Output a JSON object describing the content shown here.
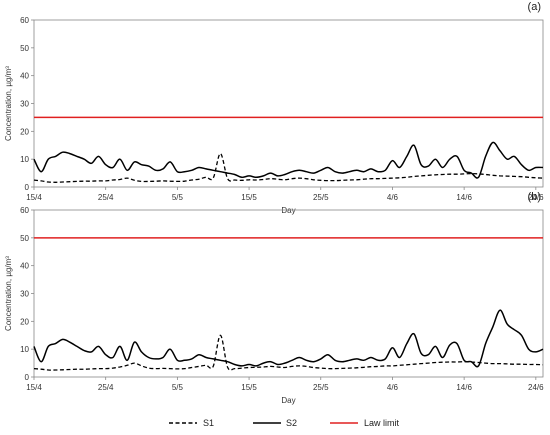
{
  "legend": [
    {
      "key": "S1",
      "label": "S1",
      "style": "dashed",
      "color": "#000000"
    },
    {
      "key": "S2",
      "label": "S2",
      "style": "solid",
      "color": "#000000"
    },
    {
      "key": "law",
      "label": "Law limit",
      "style": "solid",
      "color": "#e02020"
    }
  ],
  "chart_data": [
    {
      "type": "line",
      "panel_label": "(a)",
      "xlabel": "Day",
      "ylabel": "Concentration, µg/m³",
      "ylim": [
        0,
        60
      ],
      "yticks": [
        0,
        10,
        20,
        30,
        40,
        50,
        60
      ],
      "xlim": [
        0,
        71
      ],
      "xticks": [
        {
          "x": 0,
          "label": "15/4"
        },
        {
          "x": 10,
          "label": "25/4"
        },
        {
          "x": 20,
          "label": "5/5"
        },
        {
          "x": 30,
          "label": "15/5"
        },
        {
          "x": 40,
          "label": "25/5"
        },
        {
          "x": 50,
          "label": "4/6"
        },
        {
          "x": 60,
          "label": "14/6"
        },
        {
          "x": 70,
          "label": "24/6"
        }
      ],
      "law_limit": 25,
      "series": [
        {
          "name": "S1",
          "x": [
            0,
            1,
            2,
            3,
            4,
            5,
            6,
            7,
            8,
            9,
            10,
            11,
            12,
            13,
            14,
            15,
            16,
            17,
            18,
            19,
            20,
            21,
            22,
            23,
            24,
            25,
            26,
            27,
            28,
            29,
            30,
            31,
            32,
            33,
            34,
            35,
            36,
            37,
            38,
            39,
            40,
            41,
            42,
            43,
            44,
            45,
            46,
            47,
            48,
            49,
            50,
            51,
            52,
            53,
            54,
            55,
            56,
            57,
            58,
            59,
            60,
            61,
            62,
            63,
            64,
            65,
            66,
            67,
            68,
            69,
            70,
            71
          ],
          "y": [
            2.5,
            2.2,
            1.8,
            1.7,
            1.8,
            1.9,
            2,
            2.1,
            2.1,
            2.2,
            2.2,
            2.5,
            2.7,
            3.2,
            2.4,
            2,
            2,
            2.1,
            2.2,
            2.1,
            2,
            2.1,
            2.5,
            2.8,
            3.5,
            3.2,
            12,
            3,
            2.5,
            2.4,
            2.6,
            2.5,
            2.7,
            3,
            2.8,
            2.6,
            3,
            3.2,
            3,
            2.6,
            2.4,
            2.3,
            2.3,
            2.4,
            2.5,
            2.6,
            2.8,
            3,
            3,
            3.1,
            3.2,
            3.3,
            3.5,
            3.8,
            4,
            4.2,
            4.4,
            4.5,
            4.6,
            4.6,
            4.7,
            4.8,
            4.7,
            4.5,
            4.2,
            4,
            3.9,
            3.8,
            3.7,
            3.5,
            3.3,
            3.2
          ]
        },
        {
          "name": "S2",
          "x": [
            0,
            1,
            2,
            3,
            4,
            5,
            6,
            7,
            8,
            9,
            10,
            11,
            12,
            13,
            14,
            15,
            16,
            17,
            18,
            19,
            20,
            21,
            22,
            23,
            24,
            25,
            26,
            27,
            28,
            29,
            30,
            31,
            32,
            33,
            34,
            35,
            36,
            37,
            38,
            39,
            40,
            41,
            42,
            43,
            44,
            45,
            46,
            47,
            48,
            49,
            50,
            51,
            52,
            53,
            54,
            55,
            56,
            57,
            58,
            59,
            60,
            61,
            62,
            63,
            64,
            65,
            66,
            67,
            68,
            69,
            70,
            71
          ],
          "y": [
            10,
            5.5,
            10,
            11,
            12.5,
            12,
            11,
            10,
            8.5,
            11,
            8,
            7,
            10,
            6,
            9,
            8,
            7.5,
            6,
            6.5,
            9,
            5.5,
            5.5,
            6,
            7,
            6.5,
            6,
            5.5,
            5,
            4.5,
            3.5,
            4,
            3.5,
            4,
            5,
            4,
            4.5,
            5.5,
            6,
            5.5,
            5,
            6,
            7,
            5.5,
            5,
            5.5,
            6,
            5.5,
            6.5,
            5.5,
            6,
            9.5,
            7,
            11,
            15,
            8,
            7.5,
            10,
            7,
            10,
            11,
            6,
            5,
            3.5,
            11,
            16,
            13,
            10,
            11,
            8,
            6,
            7,
            7
          ]
        }
      ]
    },
    {
      "type": "line",
      "panel_label": "(b)",
      "xlabel": "Day",
      "ylabel": "Concentration, µg/m³",
      "ylim": [
        0,
        60
      ],
      "yticks": [
        0,
        10,
        20,
        30,
        40,
        50,
        60
      ],
      "xlim": [
        0,
        71
      ],
      "xticks": [
        {
          "x": 0,
          "label": "15/4"
        },
        {
          "x": 10,
          "label": "25/4"
        },
        {
          "x": 20,
          "label": "5/5"
        },
        {
          "x": 30,
          "label": "15/5"
        },
        {
          "x": 40,
          "label": "25/5"
        },
        {
          "x": 50,
          "label": "4/6"
        },
        {
          "x": 60,
          "label": "14/6"
        },
        {
          "x": 70,
          "label": "24/6"
        }
      ],
      "law_limit": 50,
      "series": [
        {
          "name": "S1",
          "x": [
            0,
            1,
            2,
            3,
            4,
            5,
            6,
            7,
            8,
            9,
            10,
            11,
            12,
            13,
            14,
            15,
            16,
            17,
            18,
            19,
            20,
            21,
            22,
            23,
            24,
            25,
            26,
            27,
            28,
            29,
            30,
            31,
            32,
            33,
            34,
            35,
            36,
            37,
            38,
            39,
            40,
            41,
            42,
            43,
            44,
            45,
            46,
            47,
            48,
            49,
            50,
            51,
            52,
            53,
            54,
            55,
            56,
            57,
            58,
            59,
            60,
            61,
            62,
            63,
            64,
            65,
            66,
            67,
            68,
            69,
            70,
            71
          ],
          "y": [
            3,
            2.8,
            2.5,
            2.5,
            2.6,
            2.7,
            2.8,
            2.8,
            2.9,
            3,
            3,
            3.2,
            3.6,
            4.2,
            5,
            4,
            3.2,
            3,
            3.1,
            3,
            2.9,
            3,
            3.4,
            3.8,
            4.2,
            3.8,
            15,
            3.5,
            3,
            3.2,
            3.4,
            3.5,
            3.6,
            3.8,
            3.6,
            3.4,
            3.8,
            4,
            3.8,
            3.4,
            3.2,
            3,
            3,
            3.1,
            3.2,
            3.3,
            3.5,
            3.7,
            3.8,
            4,
            4,
            4.2,
            4.4,
            4.6,
            4.8,
            5,
            5.2,
            5.3,
            5.4,
            5.4,
            5.5,
            5.4,
            5.2,
            5,
            4.8,
            4.8,
            4.7,
            4.6,
            4.6,
            4.5,
            4.5,
            4.4
          ]
        },
        {
          "name": "S2",
          "x": [
            0,
            1,
            2,
            3,
            4,
            5,
            6,
            7,
            8,
            9,
            10,
            11,
            12,
            13,
            14,
            15,
            16,
            17,
            18,
            19,
            20,
            21,
            22,
            23,
            24,
            25,
            26,
            27,
            28,
            29,
            30,
            31,
            32,
            33,
            34,
            35,
            36,
            37,
            38,
            39,
            40,
            41,
            42,
            43,
            44,
            45,
            46,
            47,
            48,
            49,
            50,
            51,
            52,
            53,
            54,
            55,
            56,
            57,
            58,
            59,
            60,
            61,
            62,
            63,
            64,
            65,
            66,
            67,
            68,
            69,
            70,
            71
          ],
          "y": [
            11,
            5.5,
            11,
            12,
            13.5,
            12.5,
            11,
            9.5,
            9,
            11,
            8,
            7,
            11,
            6,
            12.5,
            9,
            7,
            6.5,
            7,
            10,
            6,
            6,
            6.5,
            8,
            7,
            6.5,
            6,
            5.5,
            4.5,
            4,
            4.5,
            4,
            5,
            5.5,
            4.5,
            5,
            6,
            7,
            6,
            5.5,
            6.5,
            8,
            6,
            5.5,
            6,
            6.5,
            6,
            7,
            6,
            6.5,
            10.5,
            7,
            12,
            15.5,
            8.5,
            8,
            11,
            7,
            11.5,
            12,
            6,
            5.5,
            4,
            12,
            18,
            24,
            19,
            17,
            15,
            10,
            9,
            10
          ]
        }
      ]
    }
  ]
}
